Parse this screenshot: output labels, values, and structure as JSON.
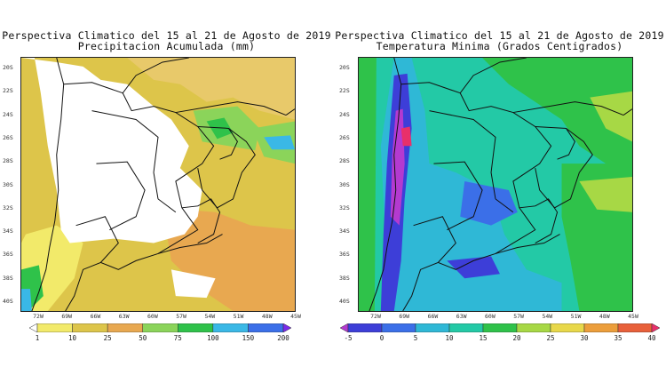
{
  "left_map": {
    "title_line1": "Perspectiva Climatico del 15 al 21 de Agosto de 2019",
    "title_line2": "Precipitacion Acumulada (mm)",
    "lat_labels": [
      "20S",
      "22S",
      "24S",
      "26S",
      "28S",
      "30S",
      "32S",
      "34S",
      "36S",
      "38S",
      "40S"
    ],
    "lon_labels": [
      "72W",
      "69W",
      "66W",
      "63W",
      "60W",
      "57W",
      "54W",
      "51W",
      "48W",
      "45W"
    ],
    "colorbar": {
      "labels": [
        "1",
        "10",
        "25",
        "50",
        "75",
        "100",
        "150",
        "200"
      ],
      "colors": [
        "#ffffff",
        "#f2ea6a",
        "#ddc54a",
        "#e8a850",
        "#8bd45a",
        "#2fc24a",
        "#3ab8e6",
        "#3b6fe8",
        "#7b2be8"
      ]
    }
  },
  "right_map": {
    "title_line1": "Perspectiva Climatico del 15 al 21 de Agosto de 2019",
    "title_line2": "Temperatura Minima (Grados Centigrados)",
    "lat_labels": [
      "20S",
      "22S",
      "24S",
      "26S",
      "28S",
      "30S",
      "32S",
      "34S",
      "36S",
      "38S",
      "40S"
    ],
    "lon_labels": [
      "72W",
      "69W",
      "66W",
      "63W",
      "60W",
      "57W",
      "54W",
      "51W",
      "48W",
      "45W"
    ],
    "colorbar": {
      "labels": [
        "-5",
        "0",
        "5",
        "10",
        "15",
        "20",
        "25",
        "30",
        "35",
        "40"
      ],
      "colors": [
        "#b43ad0",
        "#3d3ed8",
        "#3b6fe8",
        "#2fb8d6",
        "#23c9a6",
        "#2fc24a",
        "#a7d845",
        "#e8d84a",
        "#ec9e3b",
        "#e8603a",
        "#e8306a"
      ]
    }
  }
}
